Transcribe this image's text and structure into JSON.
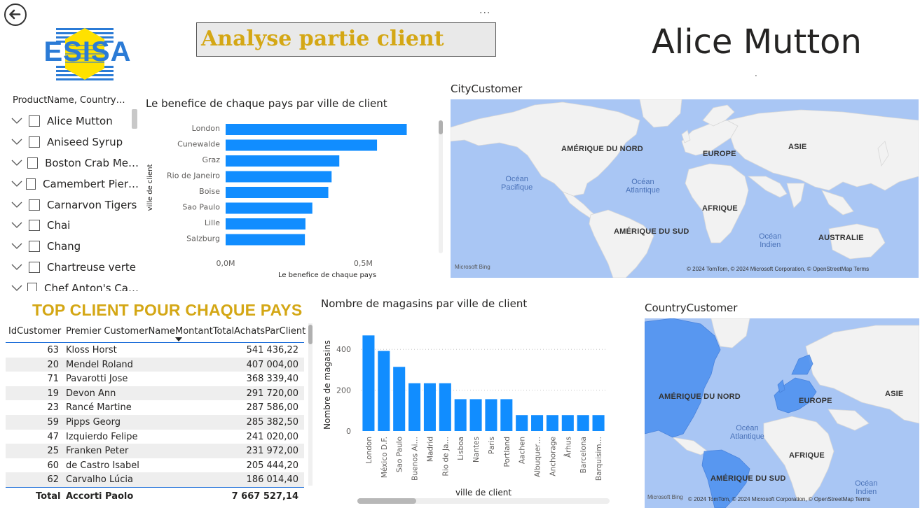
{
  "header": {
    "title": "Analyse partie client",
    "card_value": "Alice Mutton",
    "card_dot": ".",
    "more_dots": "..."
  },
  "logo": {
    "text": "ESISA"
  },
  "slicer": {
    "header": "ProductName, Country…",
    "items": [
      {
        "label": "Alice Mutton"
      },
      {
        "label": "Aniseed Syrup"
      },
      {
        "label": "Boston Crab Me…"
      },
      {
        "label": "Camembert Pier…"
      },
      {
        "label": "Carnarvon Tigers"
      },
      {
        "label": "Chai"
      },
      {
        "label": "Chang"
      },
      {
        "label": "Chartreuse verte"
      },
      {
        "label": "Chef Anton's Ca…"
      }
    ]
  },
  "chart1": {
    "title": "Le benefice de chaque pays par ville de client",
    "xlabel": "Le benefice de chaque pays",
    "ylabel": "ville de client",
    "xticks": [
      "0,0M",
      "0,5M"
    ]
  },
  "map1": {
    "title": "CityCustomer",
    "labels": [
      "AMÉRIQUE DU NORD",
      "EUROPE",
      "ASIE",
      "AFRIQUE",
      "AMÉRIQUE DU SUD",
      "AUSTRALIE"
    ],
    "oceans": [
      "Océan\nPacifique",
      "Océan\nAtlantique",
      "Océan\nIndien"
    ],
    "bing": "Microsoft Bing",
    "credit": "© 2024 TomTom, © 2024 Microsoft Corporation, © OpenStreetMap  Terms"
  },
  "table": {
    "title": "TOP CLIENT POUR CHAQUE PAYS",
    "headers": [
      "IdCustomer",
      "Premier CustomerName",
      "MontantTotalAchatsParClient"
    ],
    "rows": [
      {
        "id": "63",
        "name": "Kloss Horst",
        "amount": "541 436,22"
      },
      {
        "id": "20",
        "name": "Mendel Roland",
        "amount": "407 004,00"
      },
      {
        "id": "71",
        "name": "Pavarotti Jose",
        "amount": "368 339,40"
      },
      {
        "id": "19",
        "name": "Devon Ann",
        "amount": "291 720,00"
      },
      {
        "id": "23",
        "name": "Rancé Martine",
        "amount": "287 586,00"
      },
      {
        "id": "59",
        "name": "Pipps Georg",
        "amount": "285 382,50"
      },
      {
        "id": "47",
        "name": "Izquierdo Felipe",
        "amount": "241 020,00"
      },
      {
        "id": "25",
        "name": "Franken Peter",
        "amount": "231 972,00"
      },
      {
        "id": "60",
        "name": "de Castro Isabel",
        "amount": "205 444,20"
      },
      {
        "id": "62",
        "name": "Carvalho Lúcia",
        "amount": "186 014,40"
      }
    ],
    "total": {
      "label": "Total",
      "name": "Accorti Paolo",
      "amount": "7 667 527,14"
    }
  },
  "chart2": {
    "title": "Nombre de magasins par ville de client",
    "xlabel": "ville de client",
    "ylabel": "Nombre de magasins"
  },
  "map2": {
    "title": "CountryCustomer",
    "labels": [
      "AMÉRIQUE DU NORD",
      "EUROPE",
      "ASIE",
      "AFRIQUE",
      "AMÉRIQUE DU SUD"
    ],
    "oceans": [
      "Océan\nAtlantique",
      "Océan\nIndien"
    ],
    "bing": "Microsoft Bing",
    "credit": "© 2024 TomTom, © 2024 Microsoft Corporation, © OpenStreetMap  Terms"
  },
  "colors": {
    "bar": "#118dff",
    "title_gold": "#d4a715",
    "map_water": "#a9c6f4",
    "map_land": "#f2f2f2",
    "highlight": "#4a8ff0"
  },
  "chart_data": [
    {
      "type": "bar",
      "orientation": "horizontal",
      "title": "Le benefice de chaque pays par ville de client",
      "xlabel": "Le benefice de chaque pays",
      "ylabel": "ville de client",
      "categories": [
        "London",
        "Cunewalde",
        "Graz",
        "Rio de Janeiro",
        "Boise",
        "Sao Paulo",
        "Lille",
        "Salzburg"
      ],
      "values": [
        658000,
        550000,
        413000,
        385000,
        373000,
        315000,
        290000,
        288000
      ],
      "xticks": [
        "0,0M",
        "0,5M"
      ],
      "xlim": [
        0,
        700000
      ]
    },
    {
      "type": "bar",
      "title": "Nombre de magasins par ville de client",
      "xlabel": "ville de client",
      "ylabel": "Nombre de magasins",
      "categories": [
        "London",
        "México D.F.",
        "Sao Paulo",
        "Buenos Ai…",
        "Madrid",
        "Rio de Ja…",
        "Lisboa",
        "Nantes",
        "Paris",
        "Portland",
        "Aachen",
        "Albuquer…",
        "Anchorage",
        "Århus",
        "Barcelona",
        "Barquisim…"
      ],
      "values": [
        468,
        392,
        314,
        234,
        234,
        234,
        156,
        156,
        156,
        156,
        78,
        78,
        78,
        78,
        78,
        78
      ],
      "yticks": [
        0,
        200,
        400
      ],
      "ylim": [
        0,
        500
      ]
    }
  ]
}
